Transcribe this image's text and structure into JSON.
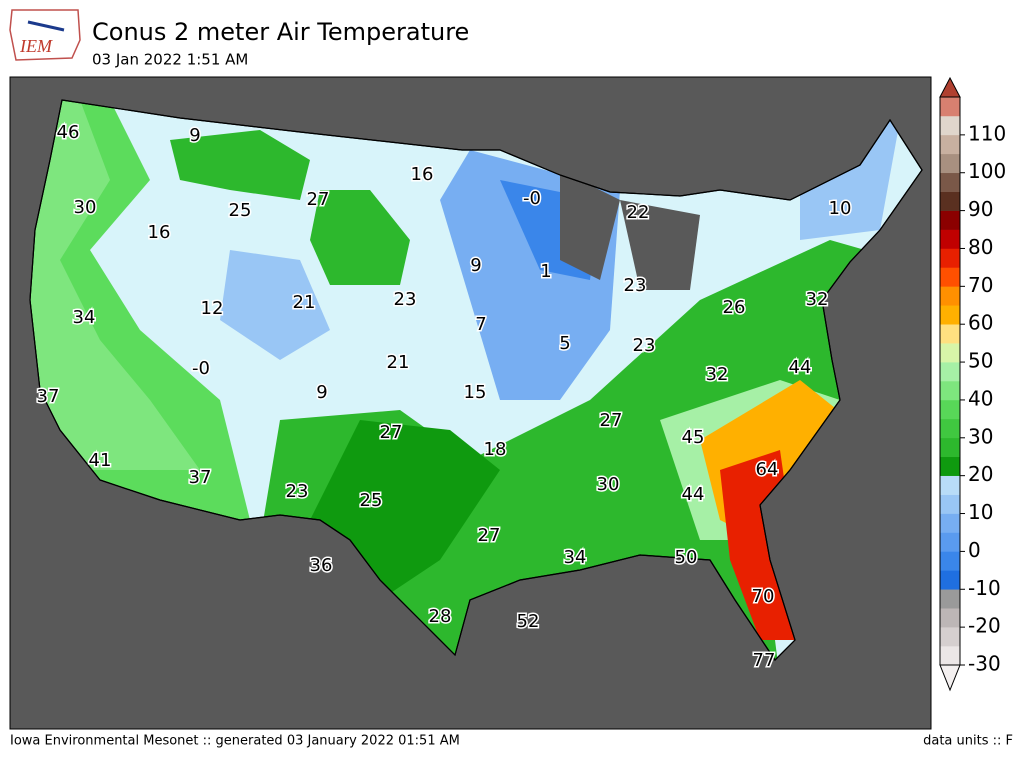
{
  "header": {
    "logo_text": "IEM",
    "title": "Conus 2 meter Air Temperature",
    "subtitle": "03 Jan 2022 1:51 AM"
  },
  "map": {
    "labels": [
      46,
      9,
      16,
      {
        "value": 0,
        "label": "-0"
      },
      22,
      10,
      30,
      25,
      27,
      16,
      9,
      1,
      23,
      26,
      32,
      34,
      12,
      21,
      23,
      7,
      5,
      23,
      {
        "value": 0,
        "label": "-0"
      },
      21,
      9,
      15,
      32,
      44,
      37,
      27,
      27,
      45,
      18,
      41,
      37,
      64,
      23,
      25,
      30,
      44,
      27,
      36,
      34,
      50,
      28,
      52,
      70,
      77
    ]
  },
  "colorbar": {
    "range": [
      -30,
      120
    ],
    "ticks": [
      -30,
      -20,
      -10,
      0,
      10,
      20,
      30,
      40,
      50,
      60,
      70,
      80,
      90,
      100,
      110
    ],
    "colors": [
      "#ece6e6",
      "#d6cfcf",
      "#bdb6b6",
      "#9a9a9a",
      "#1f6fe0",
      "#3a86ea",
      "#5a9bef",
      "#77aef2",
      "#99c6f5",
      "#b8dcf8",
      "#0f9a0f",
      "#2db82d",
      "#40c840",
      "#58d858",
      "#7ee67e",
      "#a6f0a6",
      "#d8f5a8",
      "#ffe080",
      "#ffb000",
      "#ff9000",
      "#ff5000",
      "#e82000",
      "#c00000",
      "#8b0000",
      "#5a3020",
      "#7a5848",
      "#a89080",
      "#c8b0a0",
      "#e0d6cc",
      "#d88070"
    ]
  },
  "footer": {
    "left": "Iowa Environmental Mesonet :: generated 03 January 2022 01:51 AM",
    "right": "data units :: F"
  }
}
